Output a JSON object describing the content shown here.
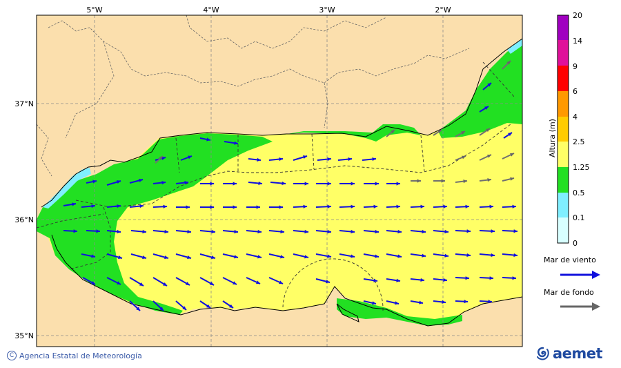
{
  "map": {
    "longitude_labels": [
      "5°W",
      "4°W",
      "3°W",
      "2°W"
    ],
    "latitude_labels": [
      "37°N",
      "36°N",
      "35°N"
    ],
    "colors": {
      "land": "#fbdfad",
      "sea_0_1": "#d7ffff",
      "sea_0_1_0_5": "#7fefff",
      "sea_0_5_1_25": "#1ee01e",
      "sea_1_25_2_5": "#ffff66",
      "border": "#555555",
      "wind_arrow": "#1010dd",
      "swell_arrow": "#666666"
    }
  },
  "colorbar": {
    "title": "Altura (m)",
    "ticks": [
      "20",
      "14",
      "9",
      "6",
      "4",
      "2.5",
      "1.25",
      "0.5",
      "0.1",
      "0"
    ],
    "colors": [
      "#a000c0",
      "#e0109a",
      "#ff0000",
      "#ff9900",
      "#ffcc00",
      "#ffff66",
      "#22e022",
      "#80efff",
      "#d8ffff"
    ]
  },
  "legend": {
    "wind_sea": "Mar de viento",
    "swell": "Mar de fondo"
  },
  "footer": {
    "credit": "Agencia Estatal de Meteorología",
    "copyright_symbol": "C",
    "logo_text": "aemet"
  }
}
